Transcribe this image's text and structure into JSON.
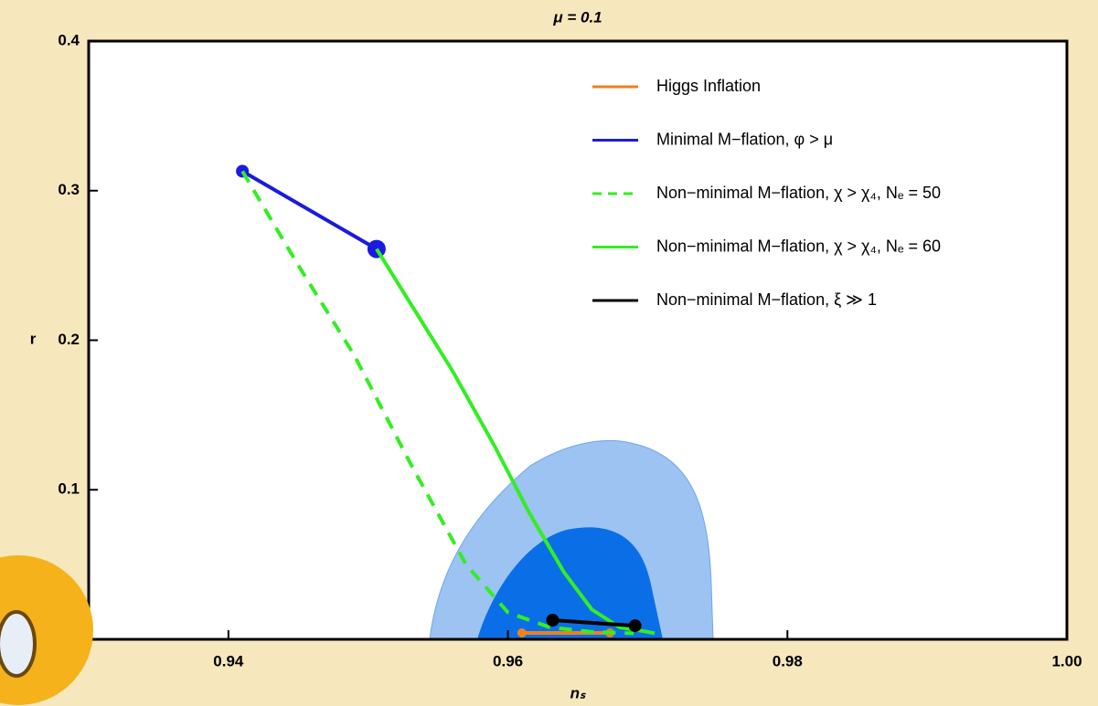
{
  "chart_data": {
    "type": "line",
    "title": "μ = 0.1",
    "x_label": "nₛ",
    "y_label": "r",
    "xlim": [
      0.93,
      1.0
    ],
    "ylim": [
      0,
      0.4
    ],
    "xticks": [
      0.94,
      0.96,
      0.98,
      {
        "value": 1,
        "label": "1.00"
      }
    ],
    "yticks": [
      0.1,
      0.2,
      0.3,
      0.4
    ],
    "legend": "upper right",
    "series": [
      {
        "name": "Higgs Inflation",
        "color": "#f07f1e",
        "dash": "solid",
        "markers": "ends",
        "x": [
          0.961,
          0.9673
        ],
        "values": [
          0.0043,
          0.0043
        ]
      },
      {
        "name": "Minimal M−flation, φ > μ",
        "color": "#1a1ae0",
        "dash": "solid",
        "markers": "ends",
        "x": [
          0.941,
          0.9506
        ],
        "values": [
          0.313,
          0.261
        ]
      },
      {
        "name": "Non−minimal M−flation, χ > χ₄, Nₑ = 50",
        "color": "#33ee22",
        "dash": "dashed",
        "markers": "none",
        "x": [
          0.941,
          0.945,
          0.949,
          0.953,
          0.957,
          0.96,
          0.963,
          0.966,
          0.969
        ],
        "values": [
          0.313,
          0.25,
          0.19,
          0.118,
          0.05,
          0.018,
          0.008,
          0.005,
          0.004
        ]
      },
      {
        "name": "Non−minimal M−flation, χ > χ₄, Nₑ = 60",
        "color": "#33ee22",
        "dash": "solid",
        "markers": "none",
        "x": [
          0.9506,
          0.953,
          0.956,
          0.959,
          0.9615,
          0.964,
          0.966,
          0.968,
          0.97,
          0.9705
        ],
        "values": [
          0.261,
          0.225,
          0.18,
          0.13,
          0.085,
          0.045,
          0.02,
          0.008,
          0.005,
          0.004
        ]
      },
      {
        "name": "Non−minimal M−flation, ξ ≫ 1",
        "color": "#000000",
        "dash": "solid",
        "markers": "ends",
        "x": [
          0.9632,
          0.9691
        ],
        "values": [
          0.0128,
          0.0091
        ]
      }
    ]
  }
}
